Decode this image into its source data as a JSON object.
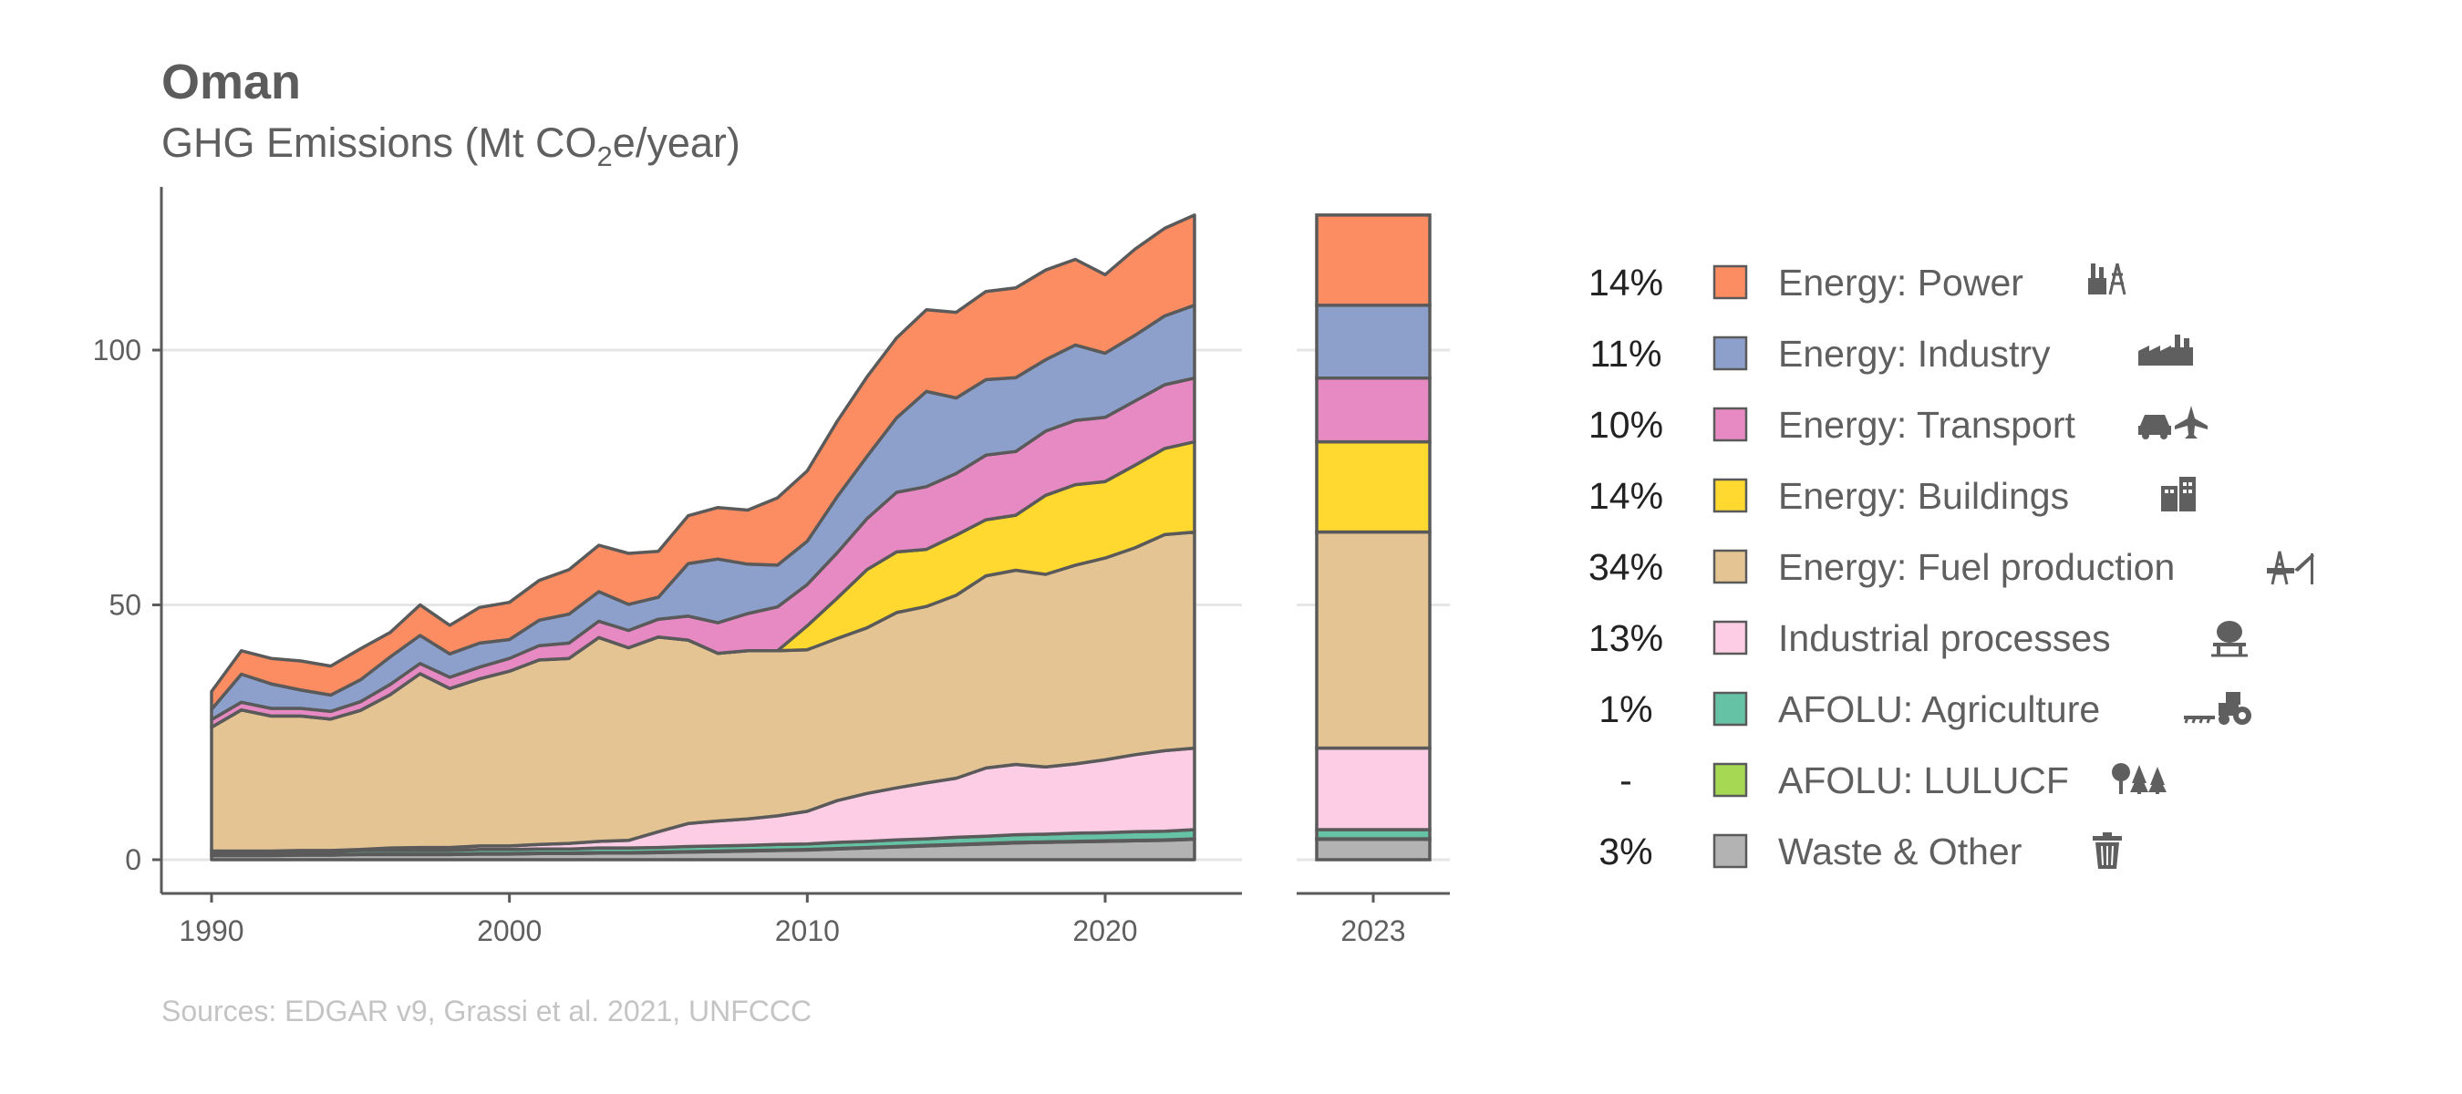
{
  "title": "Oman",
  "subtitle": {
    "prefix": "GHG Emissions (Mt CO",
    "sub": "2",
    "suffix": "e/year)"
  },
  "source": "Sources: EDGAR v9, Grassi et al. 2021, UNFCCC",
  "chart_data": {
    "type": "area",
    "stacked": true,
    "xlim": [
      1990,
      2023
    ],
    "ylim": [
      0,
      130
    ],
    "x_ticks": [
      "1990",
      "2000",
      "2010",
      "2020"
    ],
    "y_ticks": [
      "0",
      "50",
      "100"
    ],
    "grid": "horizontal",
    "legend_position": "right",
    "x": [
      1990,
      1991,
      1992,
      1993,
      1994,
      1995,
      1996,
      1997,
      1998,
      1999,
      2000,
      2001,
      2002,
      2003,
      2004,
      2005,
      2006,
      2007,
      2008,
      2009,
      2010,
      2011,
      2012,
      2013,
      2014,
      2015,
      2016,
      2017,
      2018,
      2019,
      2020,
      2021,
      2022,
      2023
    ],
    "series": [
      {
        "name": "Waste & Other",
        "color": "#b3b3b3",
        "values": [
          0.8,
          0.8,
          0.8,
          0.9,
          0.9,
          1.0,
          1.0,
          1.0,
          1.0,
          1.1,
          1.1,
          1.2,
          1.2,
          1.3,
          1.3,
          1.4,
          1.5,
          1.6,
          1.7,
          1.8,
          1.9,
          2.1,
          2.3,
          2.5,
          2.7,
          2.9,
          3.1,
          3.3,
          3.4,
          3.5,
          3.6,
          3.7,
          3.8,
          4.0
        ]
      },
      {
        "name": "AFOLU: LULUCF",
        "color": "#a6d854",
        "values": [
          0.1,
          0.1,
          0.1,
          0.1,
          0.1,
          0.1,
          0.1,
          0.1,
          0.1,
          0.1,
          0.1,
          0.1,
          0.1,
          0.1,
          0.1,
          0.1,
          0.1,
          0.1,
          0.1,
          0.1,
          0.1,
          0.1,
          0.1,
          0.1,
          0.1,
          0.1,
          0.1,
          0.1,
          0.1,
          0.1,
          0.1,
          0.1,
          0.1,
          0.1
        ]
      },
      {
        "name": "AFOLU: Agriculture",
        "color": "#66c2a5",
        "values": [
          0.6,
          0.6,
          0.6,
          0.6,
          0.6,
          0.7,
          0.7,
          0.7,
          0.7,
          0.8,
          0.8,
          0.8,
          0.8,
          0.9,
          0.9,
          0.9,
          1.0,
          1.0,
          1.0,
          1.1,
          1.1,
          1.2,
          1.2,
          1.3,
          1.3,
          1.4,
          1.4,
          1.5,
          1.5,
          1.6,
          1.6,
          1.7,
          1.7,
          1.8
        ]
      },
      {
        "name": "Industrial processes",
        "color": "#fccde5",
        "values": [
          0.2,
          0.2,
          0.2,
          0.2,
          0.2,
          0.2,
          0.5,
          0.6,
          0.6,
          0.7,
          0.7,
          0.9,
          1.1,
          1.3,
          1.5,
          3.1,
          4.5,
          4.9,
          5.2,
          5.6,
          6.4,
          8.2,
          9.4,
          10.2,
          11.0,
          11.6,
          13.4,
          13.8,
          13.2,
          13.6,
          14.3,
          15.1,
          15.8,
          16.0
        ]
      },
      {
        "name": "Energy: Fuel production",
        "color": "#e5c494",
        "values": [
          24.3,
          27.7,
          26.5,
          26.4,
          25.8,
          27.3,
          30.1,
          34.1,
          31.2,
          32.8,
          34.3,
          36.2,
          36.3,
          40.0,
          37.8,
          38.2,
          36.0,
          32.9,
          33.0,
          32.4,
          31.7,
          31.8,
          32.5,
          34.4,
          34.6,
          35.9,
          37.7,
          38.1,
          37.8,
          39.0,
          39.6,
          40.6,
          42.4,
          42.4
        ]
      },
      {
        "name": "Energy: Buildings",
        "color": "#ffd92f",
        "values": [
          0,
          0,
          0,
          0,
          0,
          0,
          0,
          0,
          0,
          0,
          0,
          0,
          0,
          0,
          0,
          0,
          0,
          0,
          0,
          0,
          4.7,
          7.9,
          11.4,
          11.9,
          11.2,
          11.8,
          11.0,
          10.8,
          15.5,
          15.8,
          15.0,
          16.2,
          16.9,
          17.7
        ]
      },
      {
        "name": "Energy: Transport",
        "color": "#e78ac3",
        "values": [
          1.5,
          1.5,
          1.5,
          1.5,
          1.5,
          1.7,
          2.0,
          2.0,
          2.2,
          2.3,
          2.5,
          2.8,
          3.0,
          3.2,
          3.4,
          3.5,
          4.7,
          6.0,
          7.3,
          8.6,
          8.1,
          8.9,
          10.0,
          11.7,
          12.3,
          12.1,
          12.7,
          12.5,
          12.6,
          12.6,
          12.6,
          12.6,
          12.5,
          12.5
        ]
      },
      {
        "name": "Energy: Industry",
        "color": "#8da0cb",
        "values": [
          2.0,
          5.5,
          4.8,
          3.6,
          3.2,
          4.3,
          5.4,
          5.5,
          4.6,
          4.7,
          3.7,
          5.0,
          5.7,
          5.8,
          5.1,
          4.3,
          10.3,
          12.5,
          9.7,
          8.2,
          8.5,
          11.0,
          12.2,
          14.6,
          18.7,
          14.8,
          14.8,
          14.5,
          14.0,
          14.8,
          12.6,
          12.9,
          13.5,
          14.3
        ]
      },
      {
        "name": "Energy: Power",
        "color": "#fc8d62",
        "values": [
          3.5,
          4.6,
          5.0,
          5.7,
          5.7,
          6.1,
          4.8,
          6.0,
          5.6,
          7.0,
          7.3,
          7.8,
          8.7,
          9.1,
          10.0,
          9.0,
          9.4,
          10.1,
          10.6,
          13.2,
          13.8,
          14.8,
          15.6,
          15.7,
          16.0,
          16.8,
          17.3,
          17.6,
          17.6,
          16.8,
          15.4,
          16.9,
          17.2,
          17.7
        ]
      }
    ],
    "bar": {
      "label": "2023",
      "order": [
        "Waste & Other",
        "AFOLU: LULUCF",
        "AFOLU: Agriculture",
        "Industrial processes",
        "Energy: Fuel production",
        "Energy: Buildings",
        "Energy: Transport",
        "Energy: Industry",
        "Energy: Power"
      ]
    },
    "legend": [
      {
        "pct": "14%",
        "label": "Energy: Power",
        "color": "#fc8d62",
        "icon": "power-plant-icon"
      },
      {
        "pct": "11%",
        "label": "Energy: Industry",
        "color": "#8da0cb",
        "icon": "factory-icon"
      },
      {
        "pct": "10%",
        "label": "Energy: Transport",
        "color": "#e78ac3",
        "icon": "car-plane-icon"
      },
      {
        "pct": "14%",
        "label": "Energy: Buildings",
        "color": "#ffd92f",
        "icon": "buildings-icon"
      },
      {
        "pct": "34%",
        "label": "Energy: Fuel production",
        "color": "#e5c494",
        "icon": "oil-rig-icon"
      },
      {
        "pct": "13%",
        "label": "Industrial processes",
        "color": "#fccde5",
        "icon": "cement-mixer-icon"
      },
      {
        "pct": "1%",
        "label": "AFOLU: Agriculture",
        "color": "#66c2a5",
        "icon": "tractor-icon"
      },
      {
        "pct": "-",
        "label": "AFOLU: LULUCF",
        "color": "#a6d854",
        "icon": "trees-icon"
      },
      {
        "pct": "3%",
        "label": "Waste & Other",
        "color": "#b3b3b3",
        "icon": "trash-icon"
      }
    ]
  }
}
